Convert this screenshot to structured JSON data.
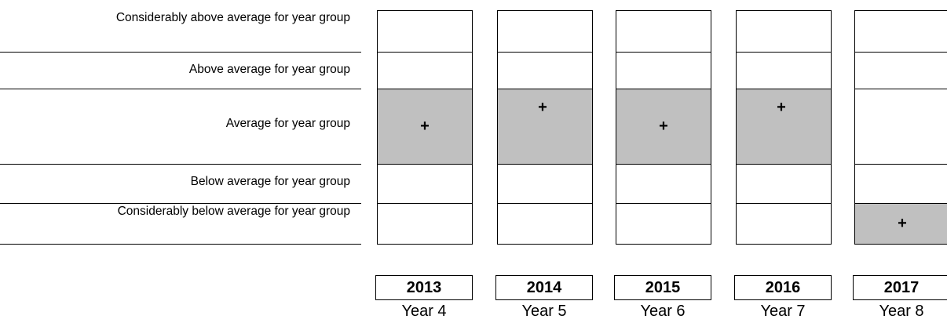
{
  "chart_data": {
    "type": "table",
    "title": "",
    "bands": [
      "Considerably above average for year group",
      "Above average for year group",
      "Average for year group",
      "Below average for year group",
      "Considerably below average for year group"
    ],
    "columns": [
      {
        "year": "2013",
        "grade": "Year 4",
        "band": "Average for year group",
        "position": "middle"
      },
      {
        "year": "2014",
        "grade": "Year 5",
        "band": "Average for year group",
        "position": "upper"
      },
      {
        "year": "2015",
        "grade": "Year 6",
        "band": "Average for year group",
        "position": "middle"
      },
      {
        "year": "2016",
        "grade": "Year 7",
        "band": "Average for year group",
        "position": "upper"
      },
      {
        "year": "2017",
        "grade": "Year 8",
        "band": "Considerably below average for year group",
        "position": "middle"
      }
    ],
    "marker_symbol": "+",
    "colors": {
      "filled_cell": "#c0c0c0",
      "empty_cell": "#ffffff",
      "border": "#000000"
    }
  }
}
